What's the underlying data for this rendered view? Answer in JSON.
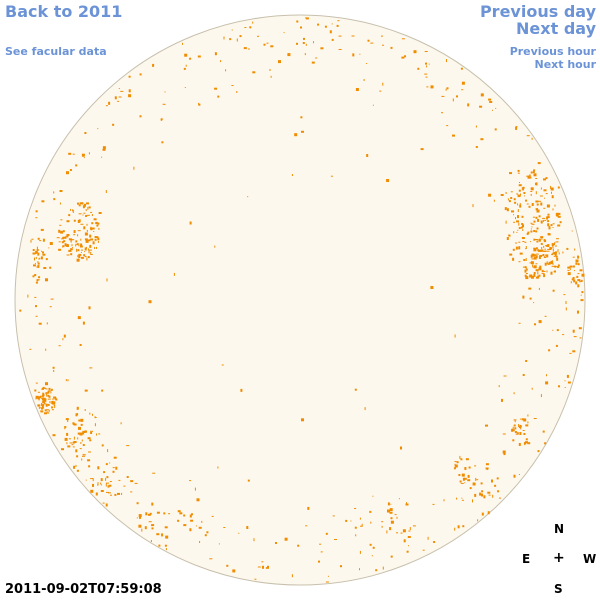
{
  "nav": {
    "back": "Back to 2011",
    "facular": "See facular data",
    "prev_day": "Previous day",
    "next_day": "Next day",
    "prev_hour": "Previous hour",
    "next_hour": "Next hour"
  },
  "timestamp": "2011-09-02T07:59:08",
  "compass": {
    "n": "N",
    "e": "E",
    "center": "+",
    "w": "W",
    "s": "S"
  },
  "colors": {
    "link": "#6b93d6",
    "disk_fill": "#fdf8ed",
    "disk_outline": "#c8c0ad",
    "facula": "#f08c00"
  }
}
